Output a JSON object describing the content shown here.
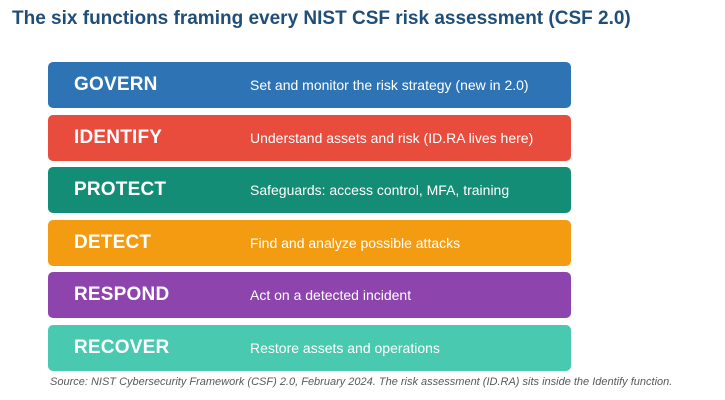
{
  "title": "The six functions framing every NIST CSF risk assessment (CSF 2.0)",
  "functions": [
    {
      "name": "GOVERN",
      "description": "Set and monitor the risk strategy (new in 2.0)",
      "color": "#2e74b5"
    },
    {
      "name": "IDENTIFY",
      "description": "Understand assets and risk (ID.RA lives here)",
      "color": "#e84c3d"
    },
    {
      "name": "PROTECT",
      "description": "Safeguards: access control, MFA, training",
      "color": "#138d75"
    },
    {
      "name": "DETECT",
      "description": "Find and analyze possible attacks",
      "color": "#f39c12"
    },
    {
      "name": "RESPOND",
      "description": "Act on a detected incident",
      "color": "#8e44ad"
    },
    {
      "name": "RECOVER",
      "description": "Restore assets and operations",
      "color": "#48c9b0"
    }
  ],
  "source": "Source: NIST Cybersecurity Framework (CSF) 2.0, February 2024. The risk assessment (ID.RA) sits inside the Identify function."
}
